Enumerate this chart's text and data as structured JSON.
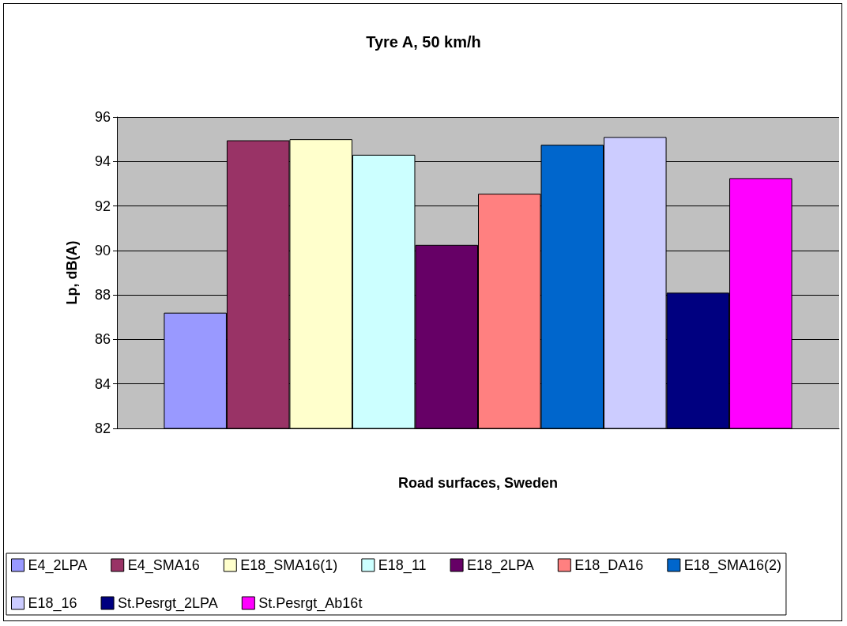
{
  "chart_data": {
    "type": "bar",
    "title": "Tyre A, 50 km/h",
    "xlabel": "Road surfaces, Sweden",
    "ylabel": "Lp, dB(A)",
    "categories": [
      null
    ],
    "series": [
      {
        "name": "E4_2LPA",
        "color": "#9999ff",
        "values": [
          87.2
        ]
      },
      {
        "name": "E4_SMA16",
        "color": "#993366",
        "values": [
          94.95
        ]
      },
      {
        "name": "E18_SMA16(1)",
        "color": "#ffffcc",
        "values": [
          95.0
        ]
      },
      {
        "name": "E18_11",
        "color": "#ccffff",
        "values": [
          94.3
        ]
      },
      {
        "name": "E18_2LPA",
        "color": "#660066",
        "values": [
          90.25
        ]
      },
      {
        "name": "E18_DA16",
        "color": "#ff8080",
        "values": [
          92.55
        ]
      },
      {
        "name": "E18_SMA16(2)",
        "color": "#0066cc",
        "values": [
          94.75
        ]
      },
      {
        "name": "E18_16",
        "color": "#ccccff",
        "values": [
          95.1
        ]
      },
      {
        "name": "St.Pesrgt_2LPA",
        "color": "#000080",
        "values": [
          88.1
        ]
      },
      {
        "name": "St.Pesrgt_Ab16t",
        "color": "#ff00ff",
        "values": [
          93.25
        ]
      }
    ],
    "ylim": [
      82,
      96
    ],
    "yticks": [
      82,
      84,
      86,
      88,
      90,
      92,
      94,
      96
    ],
    "grid": "y",
    "legend": "bottom"
  }
}
